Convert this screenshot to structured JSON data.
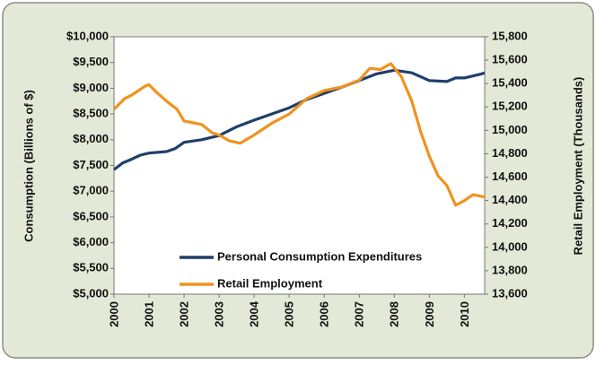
{
  "chart_data": {
    "type": "line",
    "y_label": "Consumption (Billions of $)",
    "y2_label": "Retail Employment (Thousands)",
    "xlim": [
      2000,
      2010.58
    ],
    "xticks": [
      2000,
      2001,
      2002,
      2003,
      2004,
      2005,
      2006,
      2007,
      2008,
      2009,
      2010
    ],
    "ylim": [
      5000,
      10000
    ],
    "yticks": [
      {
        "value": 5000,
        "label": "$5,000"
      },
      {
        "value": 5500,
        "label": "$5,500"
      },
      {
        "value": 6000,
        "label": "$6,000"
      },
      {
        "value": 6500,
        "label": "$6,500"
      },
      {
        "value": 7000,
        "label": "$7,000"
      },
      {
        "value": 7500,
        "label": "$7,500"
      },
      {
        "value": 8000,
        "label": "$8,000"
      },
      {
        "value": 8500,
        "label": "$8,500"
      },
      {
        "value": 9000,
        "label": "$9,000"
      },
      {
        "value": 9500,
        "label": "$9,500"
      },
      {
        "value": 10000,
        "label": "$10,000"
      }
    ],
    "y2lim": [
      13600,
      15800
    ],
    "y2ticks": [
      {
        "value": 13600,
        "label": "13,600"
      },
      {
        "value": 13800,
        "label": "13,800"
      },
      {
        "value": 14000,
        "label": "14,000"
      },
      {
        "value": 14200,
        "label": "14,200"
      },
      {
        "value": 14400,
        "label": "14,400"
      },
      {
        "value": 14600,
        "label": "14,600"
      },
      {
        "value": 14800,
        "label": "14,800"
      },
      {
        "value": 15000,
        "label": "15,000"
      },
      {
        "value": 15200,
        "label": "15,200"
      },
      {
        "value": 15400,
        "label": "15,400"
      },
      {
        "value": 15600,
        "label": "15,600"
      },
      {
        "value": 15800,
        "label": "15,800"
      }
    ],
    "series": [
      {
        "name": "Personal Consumption Expenditures",
        "color": "#1f3f6b",
        "axis": "y",
        "x": [
          2000.0,
          2000.25,
          2000.5,
          2000.75,
          2001.0,
          2001.5,
          2001.75,
          2002.0,
          2002.5,
          2003.0,
          2003.5,
          2004.0,
          2004.5,
          2005.0,
          2005.5,
          2006.0,
          2006.5,
          2007.0,
          2007.5,
          2008.0,
          2008.5,
          2009.0,
          2009.5,
          2009.75,
          2010.0,
          2010.5,
          2010.58
        ],
        "values": [
          7420,
          7550,
          7620,
          7700,
          7740,
          7770,
          7830,
          7950,
          8000,
          8080,
          8250,
          8380,
          8500,
          8620,
          8780,
          8900,
          9020,
          9150,
          9280,
          9350,
          9300,
          9150,
          9130,
          9200,
          9200,
          9280,
          9300
        ]
      },
      {
        "name": "Retail Employment",
        "color": "#f0921e",
        "axis": "y2",
        "x": [
          2000.0,
          2000.3,
          2000.5,
          2000.9,
          2001.0,
          2001.2,
          2001.5,
          2001.8,
          2002.0,
          2002.5,
          2002.8,
          2003.0,
          2003.3,
          2003.6,
          2004.0,
          2004.5,
          2005.0,
          2005.5,
          2006.0,
          2006.5,
          2007.0,
          2007.3,
          2007.6,
          2007.9,
          2008.2,
          2008.5,
          2008.75,
          2009.0,
          2009.25,
          2009.5,
          2009.75,
          2010.0,
          2010.25,
          2010.58
        ],
        "values": [
          15180,
          15270,
          15300,
          15380,
          15390,
          15330,
          15250,
          15180,
          15080,
          15050,
          14980,
          14960,
          14910,
          14890,
          14960,
          15060,
          15140,
          15270,
          15340,
          15370,
          15430,
          15530,
          15520,
          15570,
          15460,
          15250,
          14990,
          14780,
          14610,
          14530,
          14360,
          14400,
          14450,
          14430
        ]
      }
    ]
  }
}
